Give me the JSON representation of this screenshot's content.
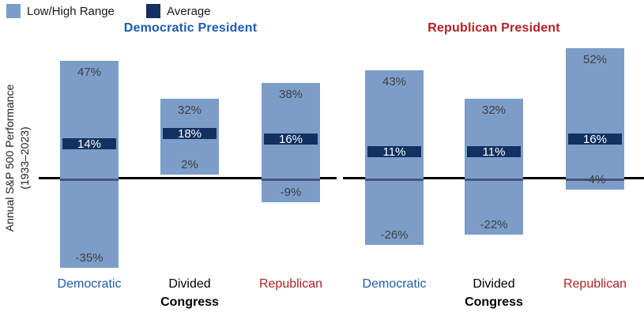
{
  "legend": {
    "range_label": "Low/High Range",
    "average_label": "Average"
  },
  "ylabel": {
    "line1": "Annual S&P 500 Performance",
    "line2": "(1933–2023)"
  },
  "colors": {
    "range_fill": "#7D9DC9",
    "average_fill": "#123160",
    "democratic_blue": "#1D5CAD",
    "republican_red": "#B42025",
    "value_text": "#404040",
    "zero_line": "#000000",
    "zero_line_in_bar": "#47577A"
  },
  "chart_data": {
    "type": "bar",
    "subtype": "floating-range-bars-with-average-marker",
    "ylabel": "Annual S&P 500 Performance (1933–2023)",
    "legend": [
      "Low/High Range",
      "Average"
    ],
    "legend_position": "top-left",
    "ylim": [
      -40,
      60
    ],
    "grid": false,
    "zero_line": true,
    "congress_axis_label": "Congress",
    "groups": [
      {
        "president": "Democratic President",
        "header_color": "#1D5CAD",
        "bars": [
          {
            "congress": "Democratic",
            "congress_color": "#1D5CAD",
            "high": 47,
            "average": 14,
            "low": -35,
            "high_label": "47%",
            "average_label": "14%",
            "low_label": "-35%"
          },
          {
            "congress": "Divided",
            "congress_color": "#000000",
            "high": 32,
            "average": 18,
            "low": 2,
            "high_label": "32%",
            "average_label": "18%",
            "low_label": "2%"
          },
          {
            "congress": "Republican",
            "congress_color": "#B42025",
            "high": 38,
            "average": 16,
            "low": -9,
            "high_label": "38%",
            "average_label": "16%",
            "low_label": "-9%"
          }
        ]
      },
      {
        "president": "Republican President",
        "header_color": "#B42025",
        "bars": [
          {
            "congress": "Democratic",
            "congress_color": "#1D5CAD",
            "high": 43,
            "average": 11,
            "low": -26,
            "high_label": "43%",
            "average_label": "11%",
            "low_label": "-26%"
          },
          {
            "congress": "Divided",
            "congress_color": "#000000",
            "high": 32,
            "average": 11,
            "low": -22,
            "high_label": "32%",
            "average_label": "11%",
            "low_label": "-22%"
          },
          {
            "congress": "Republican",
            "congress_color": "#B42025",
            "high": 52,
            "average": 16,
            "low": -4,
            "high_label": "52%",
            "average_label": "16%",
            "low_label": "-4%"
          }
        ]
      }
    ]
  }
}
